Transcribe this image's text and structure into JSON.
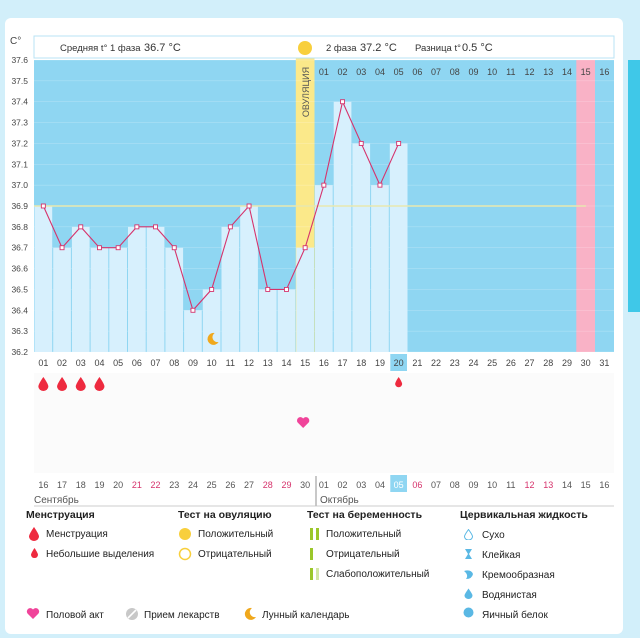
{
  "y_unit": "C°",
  "header": {
    "phase1_label": "Средняя t° 1 фаза",
    "phase1_value": "36.7 °C",
    "phase2_label": "2 фаза",
    "phase2_value": "37.2 °C",
    "diff_label": "Разница t°",
    "diff_value": "0.5 °C"
  },
  "ovulation_label": "ОВУЛЯЦИЯ",
  "phase2_day_labels": [
    "01",
    "02",
    "03",
    "04",
    "05",
    "06",
    "07",
    "08",
    "09",
    "10",
    "11",
    "12",
    "13",
    "14",
    "15",
    "16"
  ],
  "cycle_days": [
    "01",
    "02",
    "03",
    "04",
    "05",
    "06",
    "07",
    "08",
    "09",
    "10",
    "11",
    "12",
    "13",
    "14",
    "15",
    "16",
    "17",
    "18",
    "19",
    "20",
    "21",
    "22",
    "23",
    "24",
    "25",
    "26",
    "27",
    "28",
    "29",
    "30",
    "31"
  ],
  "today_cycle_day": "20",
  "dates": [
    "16",
    "17",
    "18",
    "19",
    "20",
    "21",
    "22",
    "23",
    "24",
    "25",
    "26",
    "27",
    "28",
    "29",
    "30",
    "01",
    "02",
    "03",
    "04",
    "05",
    "06",
    "07",
    "08",
    "09",
    "10",
    "11",
    "12",
    "13",
    "14",
    "15",
    "16"
  ],
  "weekend_date_indices": [
    5,
    6,
    12,
    13,
    20,
    26,
    27
  ],
  "today_date_index": 19,
  "month_labels": [
    "Сентябрь",
    "Октябрь"
  ],
  "chart_data": {
    "type": "line",
    "ylabel": "C°",
    "ylim": [
      36.2,
      37.6
    ],
    "yticks": [
      36.2,
      36.3,
      36.4,
      36.5,
      36.6,
      36.7,
      36.8,
      36.9,
      37.0,
      37.1,
      37.2,
      37.3,
      37.4,
      37.5,
      37.6
    ],
    "x": [
      1,
      2,
      3,
      4,
      5,
      6,
      7,
      8,
      9,
      10,
      11,
      12,
      13,
      14,
      15,
      16,
      17,
      18,
      19,
      20
    ],
    "series": [
      {
        "values": [
          36.9,
          36.7,
          36.8,
          36.7,
          36.7,
          36.8,
          36.8,
          36.7,
          36.4,
          36.5,
          36.8,
          36.9,
          36.5,
          36.5,
          36.7,
          37.0,
          37.4,
          37.2,
          37.0,
          37.2
        ]
      }
    ],
    "coverline": 36.9,
    "ovulation_day": 15,
    "expected_period_day": 30
  },
  "markers": {
    "menstruation_days": [
      1,
      2,
      3,
      4
    ],
    "spotting_days": [
      20
    ],
    "intercourse_days": [
      15
    ],
    "moon_days": [
      10
    ]
  },
  "legend": {
    "menstruation": {
      "title": "Менструация",
      "items": [
        "Менструация",
        "Небольшие выделения"
      ]
    },
    "ovulation_test": {
      "title": "Тест на овуляцию",
      "items": [
        "Положительный",
        "Отрицательный"
      ]
    },
    "pregnancy_test": {
      "title": "Тест на беременность",
      "items": [
        "Положительный",
        "Отрицательный",
        "Слабоположительный"
      ]
    },
    "cervical": {
      "title": "Цервикальная жидкость",
      "items": [
        "Сухо",
        "Клейкая",
        "Кремообразная",
        "Водянистая",
        "Яичный белок"
      ]
    },
    "bottom": [
      "Половой акт",
      "Прием лекарств",
      "Лунный календарь"
    ]
  },
  "colors": {
    "phase1_bg": "#8fd6f2",
    "bar": "#d7f0fd",
    "line": "#d6336c",
    "coverline": "#e8e8b0",
    "ovulation": "#fbe98a",
    "period": "#f9b2c6",
    "menstruation": "#ee2a3f",
    "today": "#8fd6f2",
    "weekend": "#d6336c"
  }
}
